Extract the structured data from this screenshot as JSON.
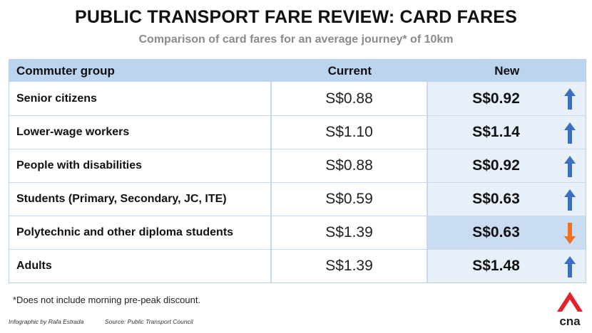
{
  "title": "PUBLIC TRANSPORT FARE REVIEW: CARD FARES",
  "subtitle": "Comparison of card fares for an average journey* of 10km",
  "table": {
    "headers": {
      "group": "Commuter group",
      "current": "Current",
      "new": "New"
    },
    "rows": [
      {
        "group": "Senior citizens",
        "current": "S$0.88",
        "new": "S$0.92",
        "direction": "up"
      },
      {
        "group": "Lower-wage workers",
        "current": "S$1.10",
        "new": "S$1.14",
        "direction": "up"
      },
      {
        "group": "People with disabilities",
        "current": "S$0.88",
        "new": "S$0.92",
        "direction": "up"
      },
      {
        "group": "Students (Primary, Secondary, JC, ITE)",
        "current": "S$0.59",
        "new": "S$0.63",
        "direction": "up"
      },
      {
        "group": "Polytechnic and other diploma students",
        "current": "S$1.39",
        "new": "S$0.63",
        "direction": "down"
      },
      {
        "group": "Adults",
        "current": "S$1.39",
        "new": "S$1.48",
        "direction": "up"
      }
    ]
  },
  "footnote": "*Does not include morning pre-peak discount.",
  "credits": {
    "author": "Infographic by Rafa Estrada",
    "source": "Source: Public Transport Council"
  },
  "logo": {
    "text": "cna",
    "icon": "cna-logo-icon"
  },
  "colors": {
    "arrow_up": "#3a6fc4",
    "arrow_down": "#f07020",
    "header_bg": "#bcd5ef",
    "new_bg": "#e7eff9",
    "new_highlight_bg": "#c9dcf1",
    "logo_red": "#e3232c"
  }
}
